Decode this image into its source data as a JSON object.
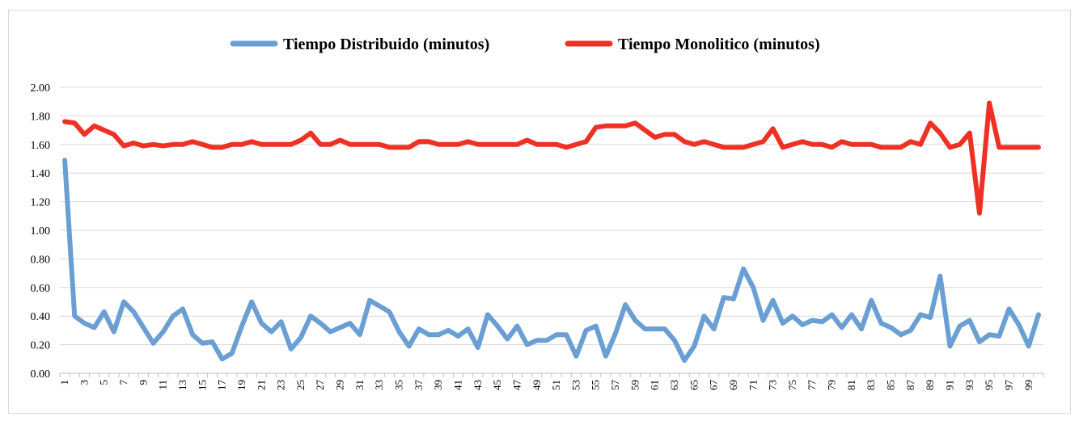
{
  "chart_data": {
    "type": "line",
    "title": "",
    "xlabel": "",
    "ylabel": "",
    "ylim": [
      0,
      2
    ],
    "yticks": [
      "0.00",
      "0.20",
      "0.40",
      "0.60",
      "0.80",
      "1.00",
      "1.20",
      "1.40",
      "1.60",
      "1.80",
      "2.00"
    ],
    "grid": true,
    "legend": "top-center",
    "x": [
      1,
      2,
      3,
      4,
      5,
      6,
      7,
      8,
      9,
      10,
      11,
      12,
      13,
      14,
      15,
      16,
      17,
      18,
      19,
      20,
      21,
      22,
      23,
      24,
      25,
      26,
      27,
      28,
      29,
      30,
      31,
      32,
      33,
      34,
      35,
      36,
      37,
      38,
      39,
      40,
      41,
      42,
      43,
      44,
      45,
      46,
      47,
      48,
      49,
      50,
      51,
      52,
      53,
      54,
      55,
      56,
      57,
      58,
      59,
      60,
      61,
      62,
      63,
      64,
      65,
      66,
      67,
      68,
      69,
      70,
      71,
      72,
      73,
      74,
      75,
      76,
      77,
      78,
      79,
      80,
      81,
      82,
      83,
      84,
      85,
      86,
      87,
      88,
      89,
      90,
      91,
      92,
      93,
      94,
      95,
      96,
      97,
      98,
      99,
      100
    ],
    "xticks": [
      1,
      3,
      5,
      7,
      9,
      11,
      13,
      15,
      17,
      19,
      21,
      23,
      25,
      27,
      29,
      31,
      33,
      35,
      37,
      39,
      41,
      43,
      45,
      47,
      49,
      51,
      53,
      55,
      57,
      59,
      61,
      63,
      65,
      67,
      69,
      71,
      73,
      75,
      77,
      79,
      81,
      83,
      85,
      87,
      89,
      91,
      93,
      95,
      97,
      99
    ],
    "series": [
      {
        "name": "Tiempo Distribuido (minutos)",
        "color": "#6a9fd4",
        "values": [
          1.49,
          0.4,
          0.35,
          0.32,
          0.43,
          0.29,
          0.5,
          0.43,
          0.32,
          0.21,
          0.29,
          0.4,
          0.45,
          0.27,
          0.21,
          0.22,
          0.1,
          0.14,
          0.33,
          0.5,
          0.35,
          0.29,
          0.36,
          0.17,
          0.25,
          0.4,
          0.35,
          0.29,
          0.32,
          0.35,
          0.27,
          0.51,
          0.47,
          0.43,
          0.29,
          0.19,
          0.31,
          0.27,
          0.27,
          0.3,
          0.26,
          0.31,
          0.18,
          0.41,
          0.33,
          0.24,
          0.33,
          0.2,
          0.23,
          0.23,
          0.27,
          0.27,
          0.12,
          0.3,
          0.33,
          0.12,
          0.28,
          0.48,
          0.37,
          0.31,
          0.31,
          0.31,
          0.23,
          0.09,
          0.19,
          0.4,
          0.31,
          0.53,
          0.52,
          0.73,
          0.6,
          0.37,
          0.51,
          0.35,
          0.4,
          0.34,
          0.37,
          0.36,
          0.41,
          0.32,
          0.41,
          0.31,
          0.51,
          0.35,
          0.32,
          0.27,
          0.3,
          0.41,
          0.39,
          0.68,
          0.19,
          0.33,
          0.37,
          0.22,
          0.27,
          0.26,
          0.45,
          0.34,
          0.19,
          0.41
        ]
      },
      {
        "name": "Tiempo Monolitico (minutos)",
        "color": "#ee3124",
        "values": [
          1.76,
          1.75,
          1.67,
          1.73,
          1.7,
          1.67,
          1.59,
          1.61,
          1.59,
          1.6,
          1.59,
          1.6,
          1.6,
          1.62,
          1.6,
          1.58,
          1.58,
          1.6,
          1.6,
          1.62,
          1.6,
          1.6,
          1.6,
          1.6,
          1.63,
          1.68,
          1.6,
          1.6,
          1.63,
          1.6,
          1.6,
          1.6,
          1.6,
          1.58,
          1.58,
          1.58,
          1.62,
          1.62,
          1.6,
          1.6,
          1.6,
          1.62,
          1.6,
          1.6,
          1.6,
          1.6,
          1.6,
          1.63,
          1.6,
          1.6,
          1.6,
          1.58,
          1.6,
          1.62,
          1.72,
          1.73,
          1.73,
          1.73,
          1.75,
          1.7,
          1.65,
          1.67,
          1.67,
          1.62,
          1.6,
          1.62,
          1.6,
          1.58,
          1.58,
          1.58,
          1.6,
          1.62,
          1.71,
          1.58,
          1.6,
          1.62,
          1.6,
          1.6,
          1.58,
          1.62,
          1.6,
          1.6,
          1.6,
          1.58,
          1.58,
          1.58,
          1.62,
          1.6,
          1.75,
          1.68,
          1.58,
          1.6,
          1.68,
          1.12,
          1.89,
          1.58,
          1.58,
          1.58,
          1.58,
          1.58
        ]
      }
    ]
  }
}
